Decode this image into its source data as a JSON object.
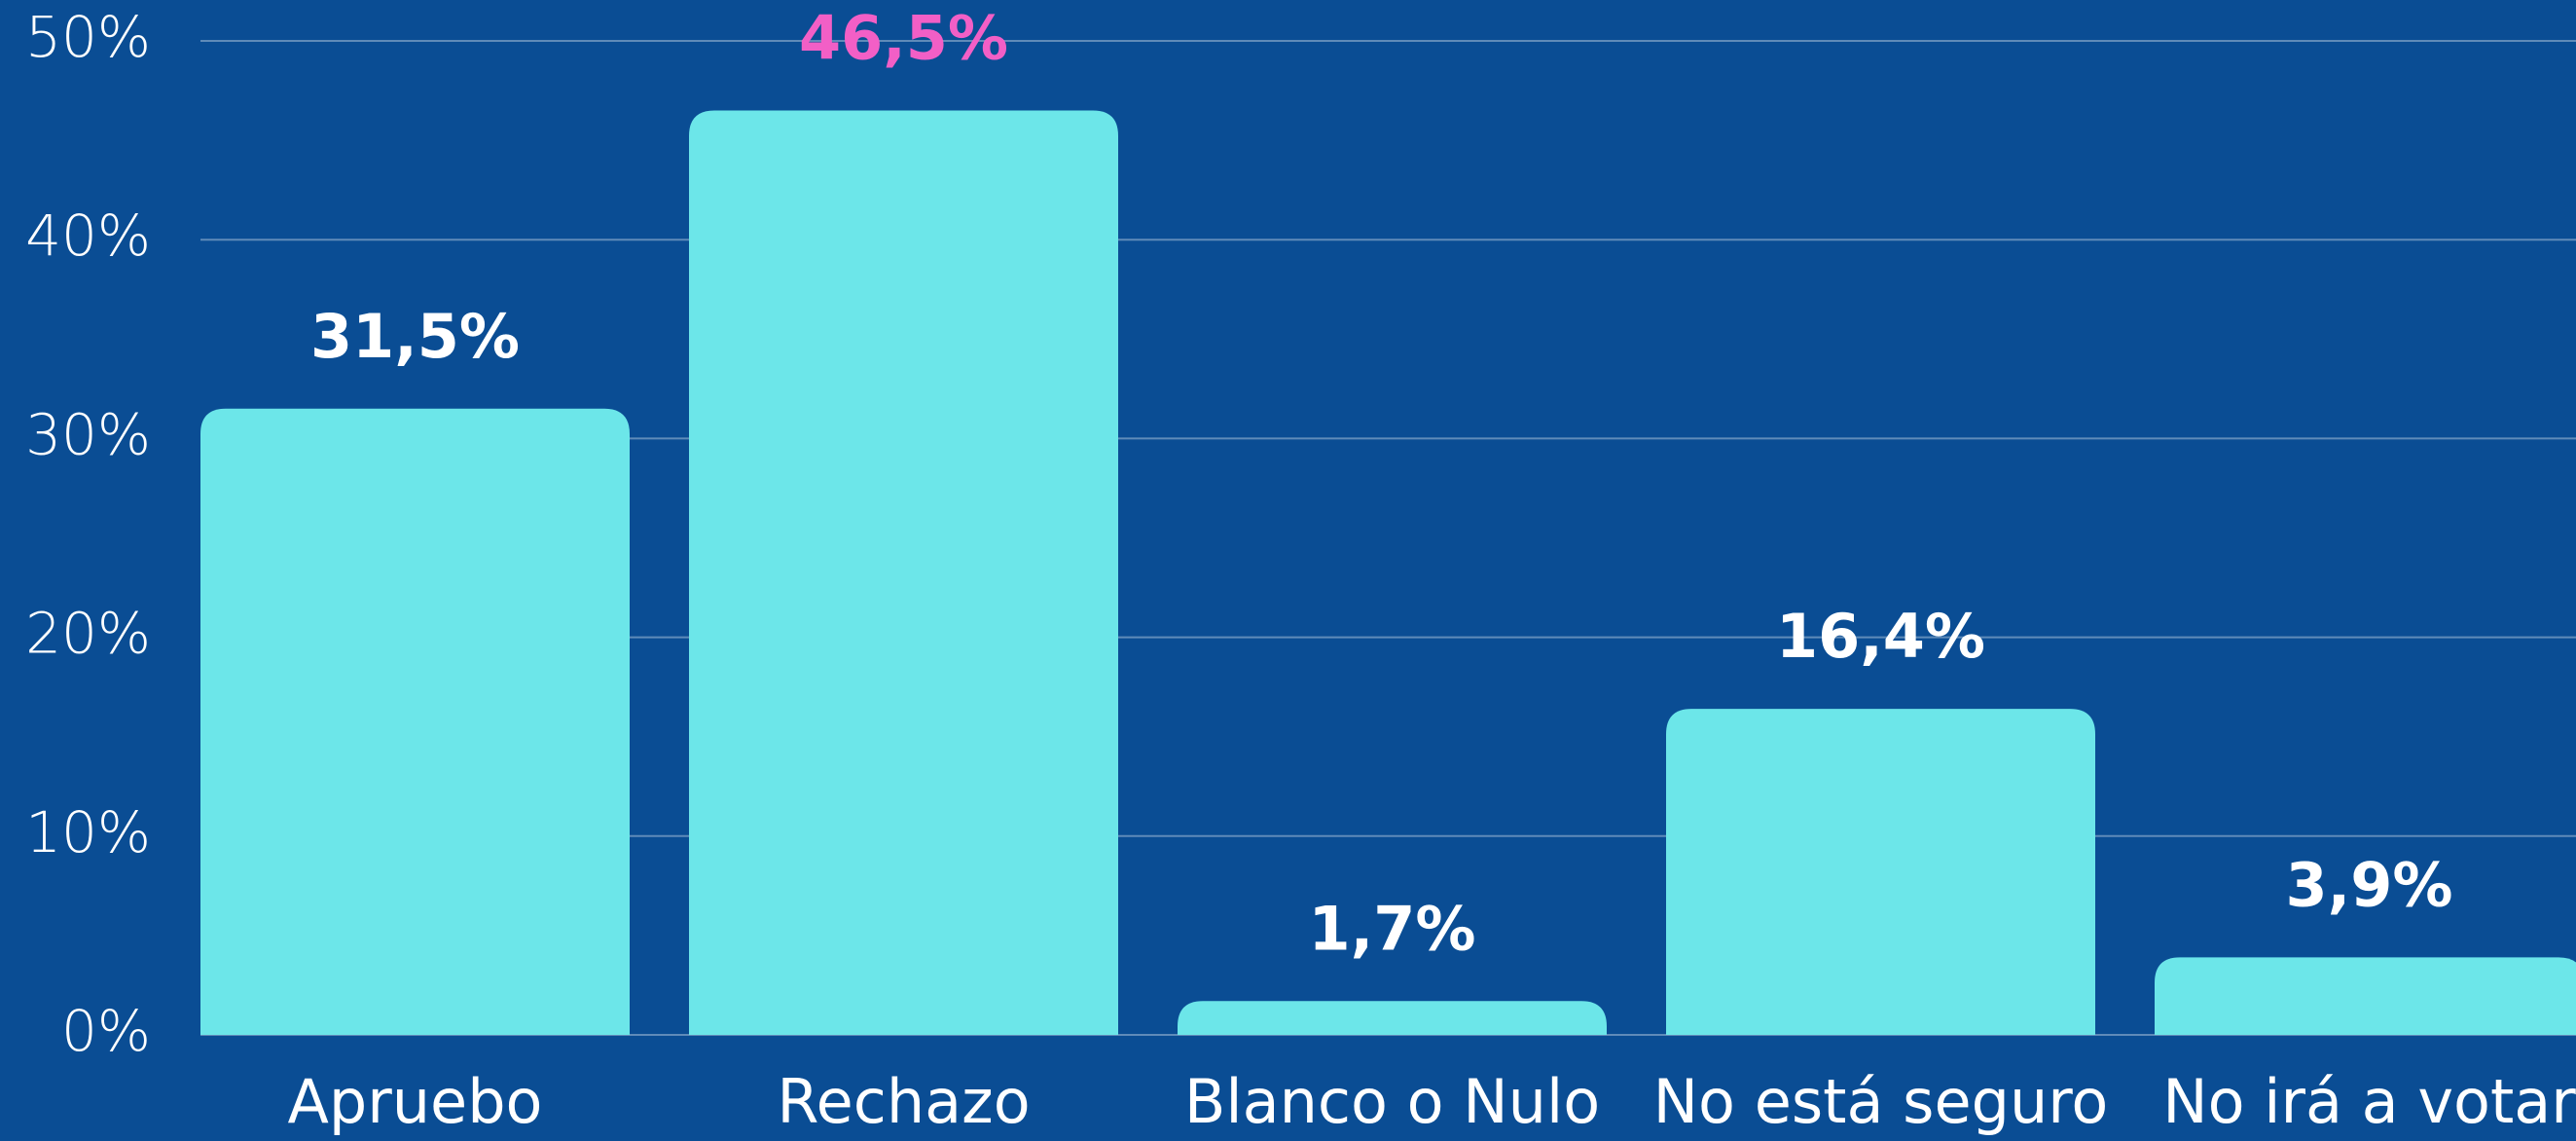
{
  "chart_data": {
    "type": "bar",
    "categories": [
      "Apruebo",
      "Rechazo",
      "Blanco o Nulo",
      "No está seguro",
      "No irá a votar"
    ],
    "values": [
      31.5,
      46.5,
      1.7,
      16.4,
      3.9
    ],
    "value_labels": [
      "31,5%",
      "46,5%",
      "1,7%",
      "16,4%",
      "3,9%"
    ],
    "value_label_colors": [
      "#ffffff",
      "#f25fc6",
      "#ffffff",
      "#ffffff",
      "#ffffff"
    ],
    "color": "#6ce6e9",
    "background": "#0a4d94",
    "ylim": [
      0,
      50
    ],
    "yticks": [
      {
        "value": 0,
        "label": "0%"
      },
      {
        "value": 10,
        "label": "10%"
      },
      {
        "value": 20,
        "label": "20%"
      },
      {
        "value": 30,
        "label": "30%"
      },
      {
        "value": 40,
        "label": "40%"
      },
      {
        "value": 50,
        "label": "50%"
      }
    ],
    "grid": true
  }
}
